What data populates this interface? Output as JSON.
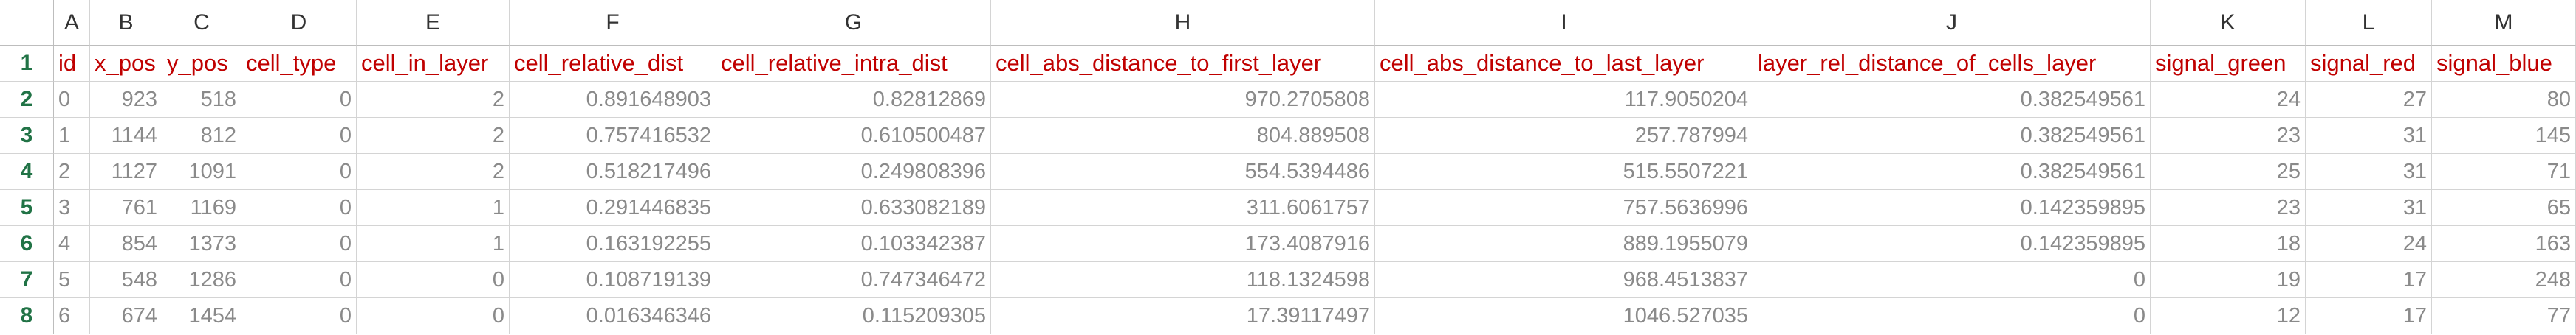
{
  "columns": [
    "A",
    "B",
    "C",
    "D",
    "E",
    "F",
    "G",
    "H",
    "I",
    "J",
    "K",
    "L",
    "M"
  ],
  "row_numbers": [
    "1",
    "2",
    "3",
    "4",
    "5",
    "6",
    "7",
    "8"
  ],
  "table": {
    "rows": [
      [
        "id",
        "x_pos",
        "y_pos",
        "cell_type",
        "cell_in_layer",
        "cell_relative_dist",
        "cell_relative_intra_dist",
        "cell_abs_distance_to_first_layer",
        "cell_abs_distance_to_last_layer",
        "layer_rel_distance_of_cells_layer",
        "signal_green",
        "signal_red",
        "signal_blue"
      ],
      [
        "0",
        "923",
        "518",
        "0",
        "2",
        "0.891648903",
        "0.82812869",
        "970.2705808",
        "117.9050204",
        "0.382549561",
        "24",
        "27",
        "80"
      ],
      [
        "1",
        "1144",
        "812",
        "0",
        "2",
        "0.757416532",
        "0.610500487",
        "804.889508",
        "257.787994",
        "0.382549561",
        "23",
        "31",
        "145"
      ],
      [
        "2",
        "1127",
        "1091",
        "0",
        "2",
        "0.518217496",
        "0.249808396",
        "554.5394486",
        "515.5507221",
        "0.382549561",
        "25",
        "31",
        "71"
      ],
      [
        "3",
        "761",
        "1169",
        "0",
        "1",
        "0.291446835",
        "0.633082189",
        "311.6061757",
        "757.5636996",
        "0.142359895",
        "23",
        "31",
        "65"
      ],
      [
        "4",
        "854",
        "1373",
        "0",
        "1",
        "0.163192255",
        "0.103342387",
        "173.4087916",
        "889.1955079",
        "0.142359895",
        "18",
        "24",
        "163"
      ],
      [
        "5",
        "548",
        "1286",
        "0",
        "0",
        "0.108719139",
        "0.747346472",
        "118.1324598",
        "968.4513837",
        "0",
        "19",
        "17",
        "248"
      ],
      [
        "6",
        "674",
        "1454",
        "0",
        "0",
        "0.016346346",
        "0.115209305",
        "17.39117497",
        "1046.527035",
        "0",
        "12",
        "17",
        "77"
      ]
    ]
  }
}
